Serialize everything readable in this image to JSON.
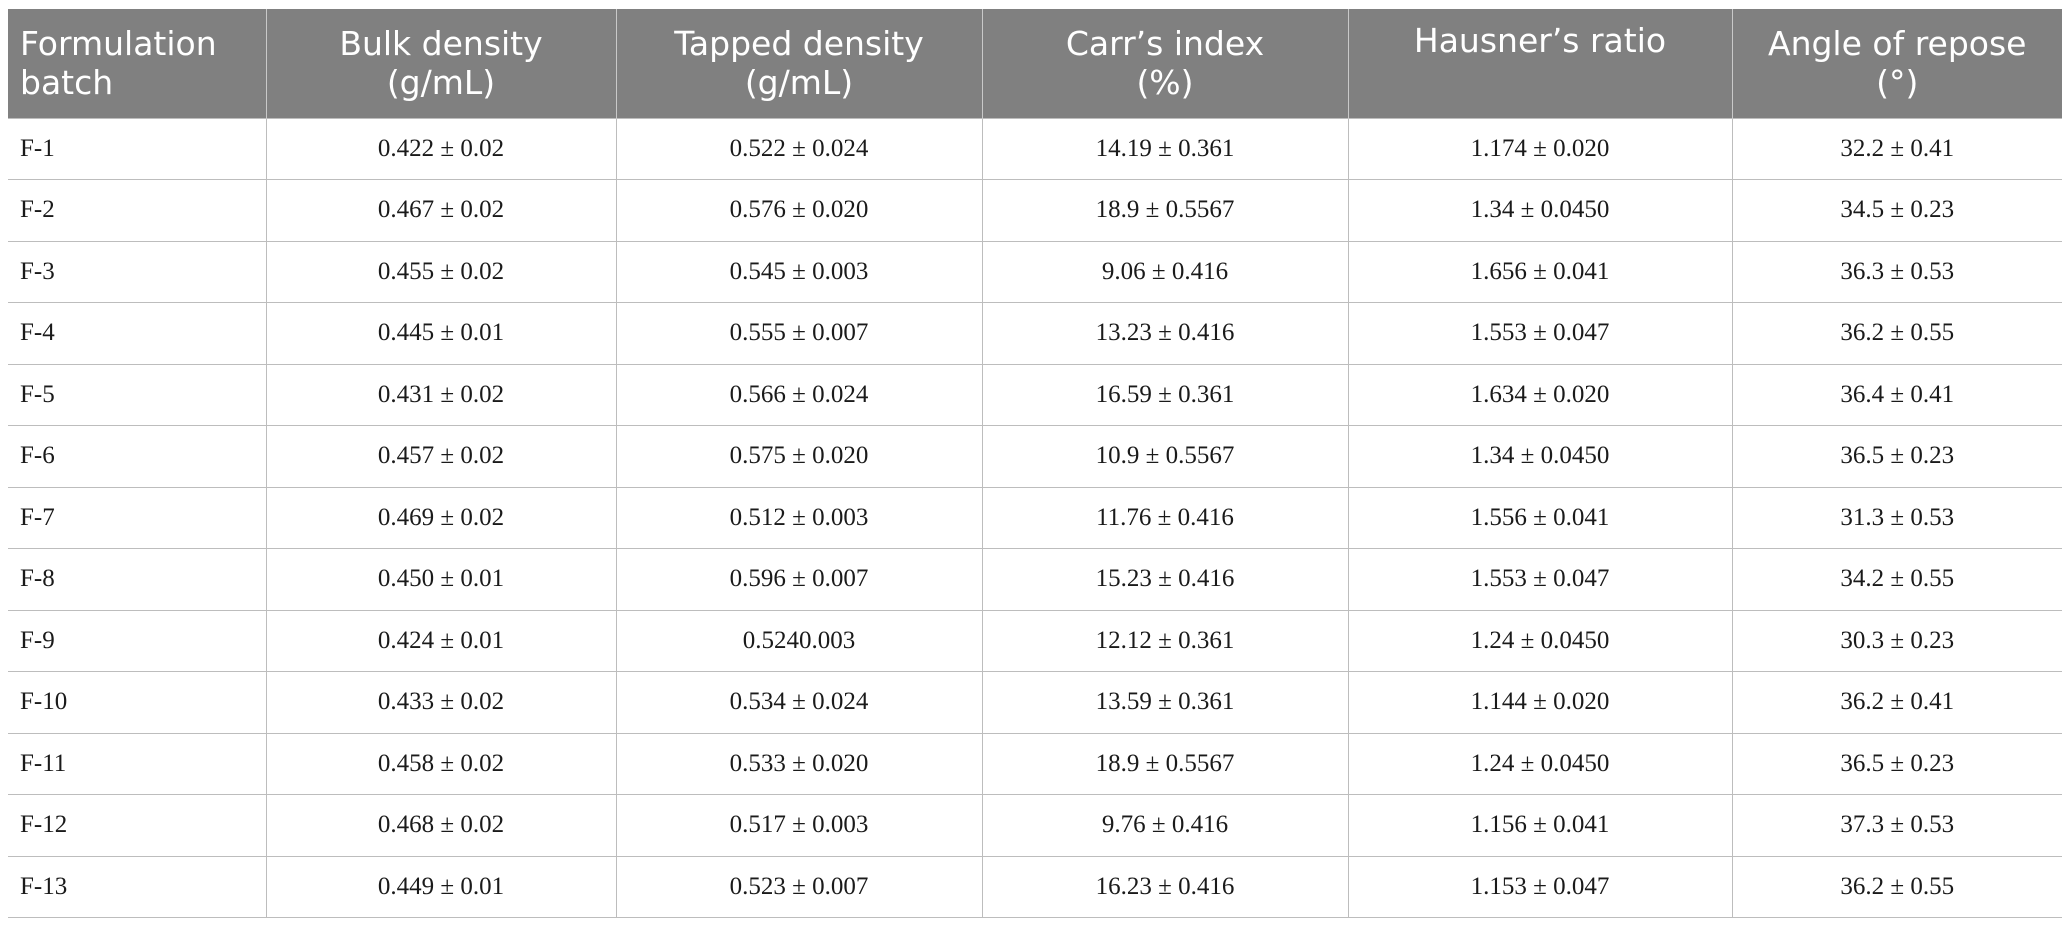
{
  "table": {
    "headers": [
      {
        "line1": "Formulation",
        "line2": "batch"
      },
      {
        "line1": "Bulk density",
        "line2": "(g/mL)"
      },
      {
        "line1": "Tapped density",
        "line2": "(g/mL)"
      },
      {
        "line1": "Carr’s index",
        "line2": "(%)"
      },
      {
        "line1": "Hausner’s ratio",
        "line2": ""
      },
      {
        "line1": "Angle of repose",
        "line2": "(°)"
      }
    ],
    "rows": [
      [
        "F-1",
        "0.422 ± 0.02",
        "0.522 ± 0.024",
        "14.19 ± 0.361",
        "1.174 ± 0.020",
        "32.2 ± 0.41"
      ],
      [
        "F-2",
        "0.467 ± 0.02",
        "0.576 ± 0.020",
        "18.9 ± 0.5567",
        "1.34 ± 0.0450",
        "34.5 ± 0.23"
      ],
      [
        "F-3",
        "0.455 ± 0.02",
        "0.545 ± 0.003",
        "9.06 ± 0.416",
        "1.656 ± 0.041",
        "36.3 ± 0.53"
      ],
      [
        "F-4",
        "0.445 ± 0.01",
        "0.555 ± 0.007",
        "13.23 ± 0.416",
        "1.553 ± 0.047",
        "36.2 ± 0.55"
      ],
      [
        "F-5",
        "0.431 ± 0.02",
        "0.566 ± 0.024",
        "16.59 ± 0.361",
        "1.634 ± 0.020",
        "36.4 ± 0.41"
      ],
      [
        "F-6",
        "0.457 ± 0.02",
        "0.575 ± 0.020",
        "10.9 ± 0.5567",
        "1.34 ± 0.0450",
        "36.5 ± 0.23"
      ],
      [
        "F-7",
        "0.469 ± 0.02",
        "0.512 ± 0.003",
        "11.76 ± 0.416",
        "1.556 ± 0.041",
        "31.3 ± 0.53"
      ],
      [
        "F-8",
        "0.450 ± 0.01",
        "0.596 ± 0.007",
        "15.23 ± 0.416",
        "1.553 ± 0.047",
        "34.2 ± 0.55"
      ],
      [
        "F-9",
        "0.424 ± 0.01",
        "0.5240.003",
        "12.12 ± 0.361",
        "1.24 ± 0.0450",
        "30.3 ± 0.23"
      ],
      [
        "F-10",
        "0.433 ± 0.02",
        "0.534 ± 0.024",
        "13.59 ± 0.361",
        "1.144 ± 0.020",
        "36.2 ± 0.41"
      ],
      [
        "F-11",
        "0.458 ± 0.02",
        "0.533 ± 0.020",
        "18.9 ± 0.5567",
        "1.24 ± 0.0450",
        "36.5 ± 0.23"
      ],
      [
        "F-12",
        "0.468 ± 0.02",
        "0.517 ± 0.003",
        "9.76 ± 0.416",
        "1.156 ± 0.041",
        "37.3 ± 0.53"
      ],
      [
        "F-13",
        "0.449 ± 0.01",
        "0.523 ± 0.007",
        "16.23 ± 0.416",
        "1.153 ± 0.047",
        "36.2 ± 0.55"
      ]
    ]
  },
  "colors": {
    "header_bg": "#808080",
    "header_text": "#ffffff",
    "grid": "#bdbdbd"
  }
}
